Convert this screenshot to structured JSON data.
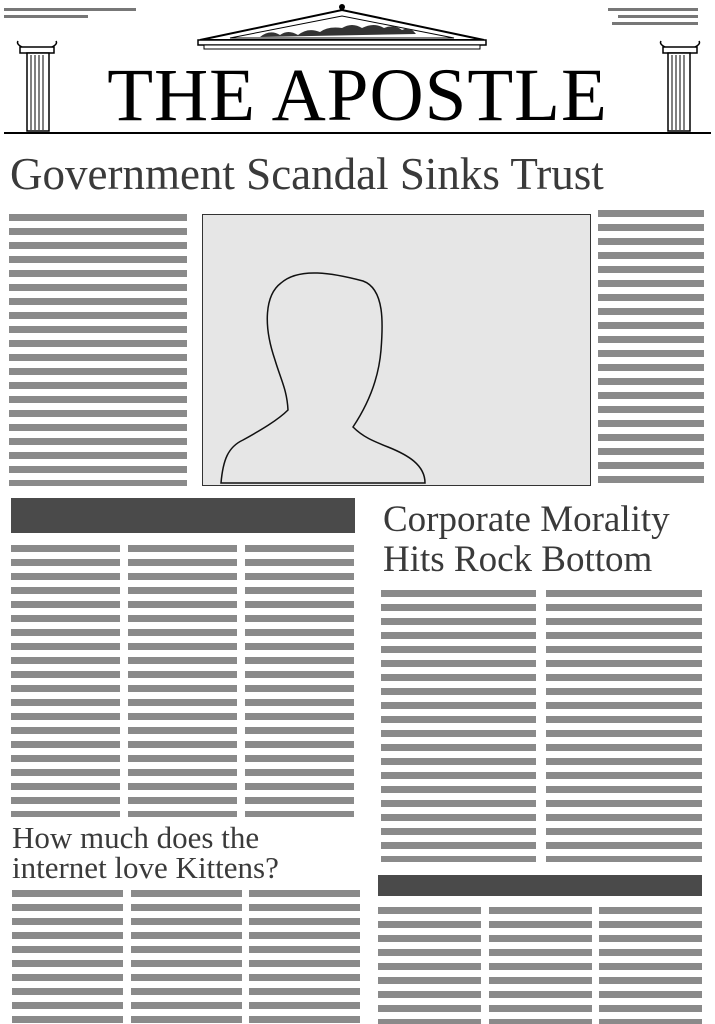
{
  "masthead": {
    "title": "THE APOSTLE"
  },
  "main_story": {
    "headline": "Government Scandal Sinks Trust"
  },
  "second_story": {
    "headline": "Corporate Morality Hits Rock Bottom"
  },
  "third_story": {
    "headline": "How much does the internet love Kittens?"
  },
  "photo": {
    "icon": "person-silhouette-icon"
  },
  "colors": {
    "text_lines": "#8a8a8a",
    "heading_bars": "#4a4a4a",
    "photo_bg": "#e6e6e6",
    "headline_text": "#3a3a3a"
  }
}
